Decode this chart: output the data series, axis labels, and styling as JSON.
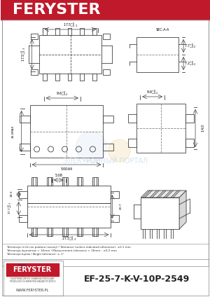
{
  "title": "FERYSTER",
  "title_bg": "#c0192c",
  "title_color": "#ffffff",
  "part_number": "EF-25-7-K-V-10P-2549",
  "website": "WWW.FERYSTER.PL",
  "bg_color": "#ffffff",
  "border_color": "#000000",
  "tolerance_text1": "Tolerancja (o ile nie podano inaczej) / Tolerance (unless indicated otherwise): ±0.1 mm",
  "tolerance_text2": "Tolerancja wymiarów > 16mm / Measurement tolerance > 16mm : ±0.2 mm",
  "tolerance_text3": "Tolerancja kątów / Angle tolerance: ± 1°",
  "watermark": "ЭЛЕКТРОННЫЙ ПОРТАЛ",
  "line_color": "#404040",
  "dim_color": "#404040"
}
